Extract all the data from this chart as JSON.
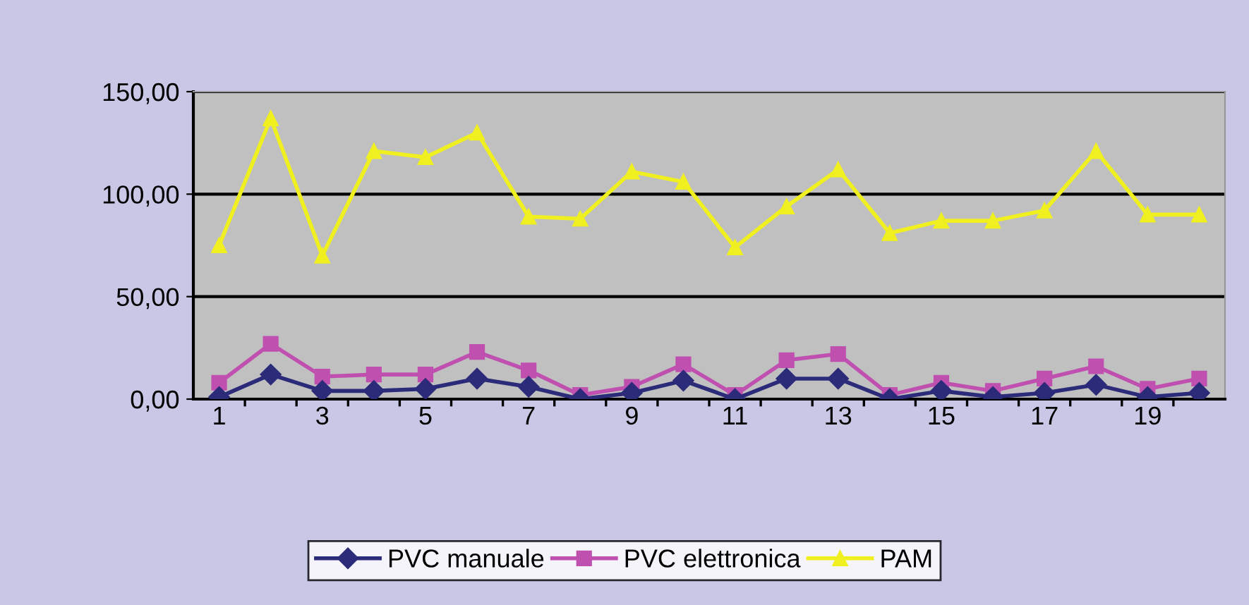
{
  "chart_data": {
    "type": "line",
    "categories": [
      "1",
      null,
      "3",
      null,
      "5",
      null,
      "7",
      null,
      "9",
      null,
      "11",
      null,
      "13",
      null,
      "15",
      null,
      "17",
      null,
      "19",
      null
    ],
    "ylim": [
      0,
      150
    ],
    "yticks": [
      {
        "value": 0,
        "label": "0,00"
      },
      {
        "value": 50,
        "label": "50,00"
      },
      {
        "value": 100,
        "label": "100,00"
      },
      {
        "value": 150,
        "label": "150,00"
      }
    ],
    "grid": "y",
    "legend": "bottom",
    "line_style": "solid",
    "series": [
      {
        "name": "PVC manuale",
        "color": "#2b2b7a",
        "marker": "diamond",
        "values": [
          1,
          12,
          4,
          4,
          5,
          10,
          6,
          0,
          3,
          9,
          0,
          10,
          10,
          0,
          4,
          1,
          3,
          7,
          1,
          3
        ]
      },
      {
        "name": "PVC elettronica",
        "color": "#c050b0",
        "marker": "square",
        "values": [
          8,
          27,
          11,
          12,
          12,
          23,
          14,
          2,
          6,
          17,
          2,
          19,
          22,
          2,
          8,
          4,
          10,
          16,
          5,
          10
        ]
      },
      {
        "name": "PAM",
        "color": "#f0f020",
        "marker": "triangle",
        "values": [
          75,
          137,
          70,
          121,
          118,
          130,
          89,
          88,
          111,
          106,
          74,
          94,
          112,
          81,
          87,
          87,
          92,
          121,
          90,
          90
        ]
      }
    ]
  }
}
